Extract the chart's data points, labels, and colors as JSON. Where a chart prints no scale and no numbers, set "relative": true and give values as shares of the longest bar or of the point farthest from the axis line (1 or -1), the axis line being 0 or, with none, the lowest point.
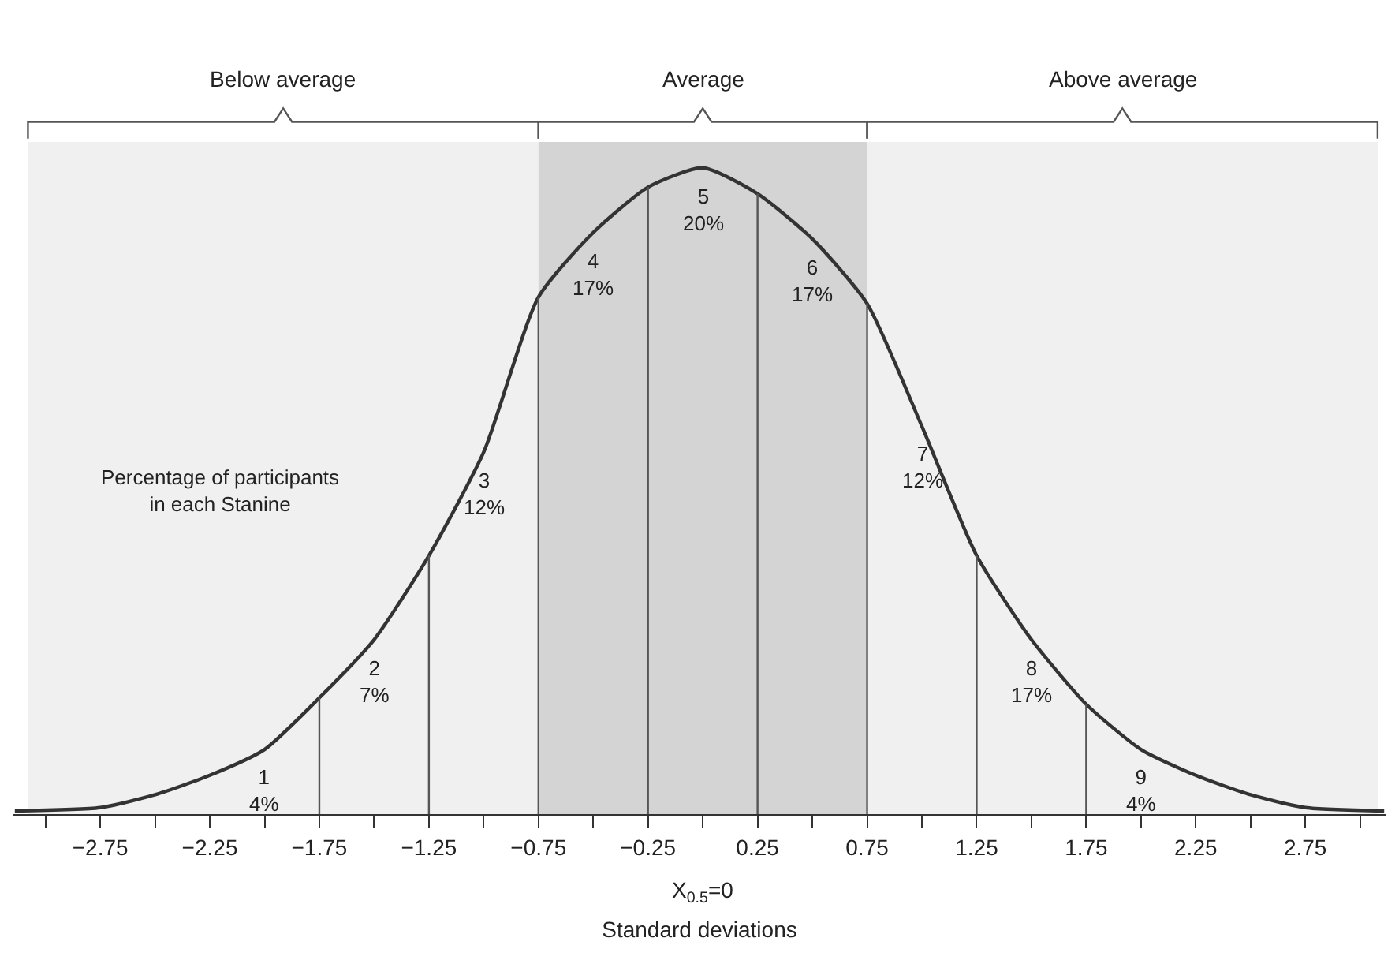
{
  "chart_data": {
    "type": "line",
    "relative": true,
    "xlabel": "Standard deviations",
    "x": [
      -3.14,
      -2.75,
      -2.5,
      -2.25,
      -2.0,
      -1.75,
      -1.5,
      -1.25,
      -1.0,
      -0.75,
      -0.5,
      -0.25,
      0,
      0.25,
      0.5,
      0.75,
      1.0,
      1.25,
      1.5,
      1.75,
      2.0,
      2.25,
      2.5,
      2.75,
      3.11
    ],
    "series": [
      {
        "color": "#333333",
        "values": [
          0.005,
          0.01,
          0.03,
          0.06,
          0.1,
          0.18,
          0.27,
          0.4,
          0.56,
          0.8,
          0.9,
          0.97,
          1,
          0.96,
          0.89,
          0.79,
          0.6,
          0.4,
          0.27,
          0.17,
          0.1,
          0.06,
          0.03,
          0.01,
          0.005
        ]
      }
    ],
    "xlim": [
      -3.15,
      3.12
    ],
    "xticks": [
      {
        "value": -3,
        "label": null
      },
      -2.75,
      {
        "value": -2.5,
        "label": null
      },
      -2.25,
      {
        "value": -2,
        "label": null
      },
      -1.75,
      {
        "value": -1.5,
        "label": null
      },
      -1.25,
      {
        "value": -1,
        "label": null
      },
      -0.75,
      {
        "value": -0.5,
        "label": null
      },
      -0.25,
      {
        "value": 0,
        "label": null
      },
      0.25,
      {
        "value": 0.5,
        "label": null
      },
      0.75,
      {
        "value": 1,
        "label": null
      },
      1.25,
      {
        "value": 1.5,
        "label": null
      },
      1.75,
      {
        "value": 2,
        "label": null
      },
      2.25,
      {
        "value": 2.5,
        "label": null
      },
      2.75,
      {
        "value": 3,
        "label": null
      }
    ],
    "bands": [
      {
        "axis": "x",
        "from": -3.08,
        "to": -0.75,
        "label": "Below average",
        "color": "#f0f0f0"
      },
      {
        "axis": "x",
        "from": -0.75,
        "to": 0.75,
        "label": "Average",
        "color": "#d4d4d4"
      },
      {
        "axis": "x",
        "from": 0.75,
        "to": 3.08,
        "label": "Above average",
        "color": "#f0f0f0"
      }
    ],
    "ref_lines": [
      {
        "axis": "x",
        "value": -1.75,
        "color": "#555555"
      },
      {
        "axis": "x",
        "value": -1.25,
        "color": "#555555"
      },
      {
        "axis": "x",
        "value": -0.75,
        "color": "#555555"
      },
      {
        "axis": "x",
        "value": -0.25,
        "color": "#555555"
      },
      {
        "axis": "x",
        "value": 0.25,
        "color": "#555555"
      },
      {
        "axis": "x",
        "value": 0.75,
        "color": "#555555"
      },
      {
        "axis": "x",
        "value": 1.25,
        "color": "#555555"
      },
      {
        "axis": "x",
        "value": 1.75,
        "color": "#555555"
      }
    ],
    "annotations": [
      "1\n4%",
      "2\n7%",
      "3\n12%",
      "4\n17%",
      "5\n20%",
      "6\n17%",
      "7\n12%",
      "8\n17%",
      "9\n4%",
      "Percentage of participants\nin each Stanine",
      "X$_{0.5}$=0"
    ],
    "grid": false,
    "marker": "none",
    "line_style": "solid"
  }
}
